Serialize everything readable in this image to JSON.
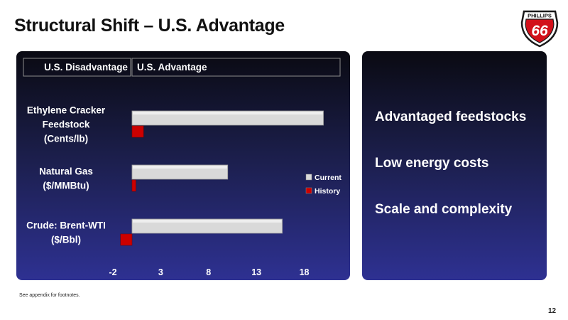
{
  "slide": {
    "title": "Structural Shift – U.S. Advantage",
    "footnote": "See appendix for footnotes.",
    "page_number": "12",
    "logo_text": "PHILLIPS",
    "logo_number": "66"
  },
  "side_panel": {
    "items": [
      "Advantaged feedstocks",
      "Low energy costs",
      "Scale and complexity"
    ]
  },
  "chart_data": {
    "type": "bar",
    "orientation": "horizontal",
    "header_labels": [
      "U.S. Disadvantage",
      "U.S. Advantage"
    ],
    "categories": [
      "Ethylene Cracker\nFeedstock\n(Cents/lb)",
      "Natural Gas\n($/MMBtu)",
      "Crude: Brent-WTI\n($/Bbl)"
    ],
    "series": [
      {
        "name": "Current",
        "values": [
          20,
          10,
          15.7
        ],
        "color": "#d9d9d9"
      },
      {
        "name": "History",
        "values": [
          1.2,
          0.4,
          -1.2
        ],
        "color": "#cc0000"
      }
    ],
    "xlim": [
      -2,
      21
    ],
    "xticks": [
      -2,
      3,
      8,
      13,
      18
    ],
    "legend_position": "right",
    "grid": false
  }
}
